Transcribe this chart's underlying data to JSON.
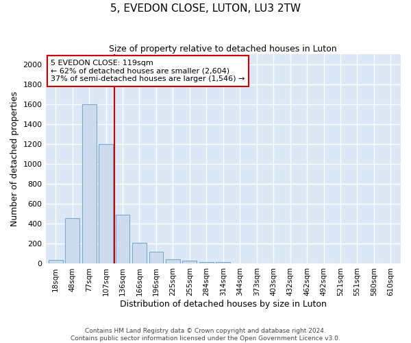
{
  "title": "5, EVEDON CLOSE, LUTON, LU3 2TW",
  "subtitle": "Size of property relative to detached houses in Luton",
  "xlabel": "Distribution of detached houses by size in Luton",
  "ylabel": "Number of detached properties",
  "bar_color": "#ccdcee",
  "bar_edge_color": "#7aaacb",
  "background_color": "#dce8f5",
  "grid_color": "#ffffff",
  "categories": [
    "18sqm",
    "48sqm",
    "77sqm",
    "107sqm",
    "136sqm",
    "166sqm",
    "196sqm",
    "225sqm",
    "255sqm",
    "284sqm",
    "314sqm",
    "344sqm",
    "373sqm",
    "403sqm",
    "432sqm",
    "462sqm",
    "492sqm",
    "521sqm",
    "551sqm",
    "580sqm",
    "610sqm"
  ],
  "values": [
    35,
    460,
    1600,
    1200,
    490,
    210,
    120,
    45,
    28,
    20,
    15,
    0,
    0,
    0,
    0,
    0,
    0,
    0,
    0,
    0,
    0
  ],
  "ylim": [
    0,
    2100
  ],
  "yticks": [
    0,
    200,
    400,
    600,
    800,
    1000,
    1200,
    1400,
    1600,
    1800,
    2000
  ],
  "annotation_text": "5 EVEDON CLOSE: 119sqm\n← 62% of detached houses are smaller (2,604)\n37% of semi-detached houses are larger (1,546) →",
  "annotation_box_color": "#ffffff",
  "annotation_box_edge_color": "#cc0000",
  "vline_x": 3.5,
  "vline_color": "#cc0000",
  "footer": "Contains HM Land Registry data © Crown copyright and database right 2024.\nContains public sector information licensed under the Open Government Licence v3.0.",
  "figsize": [
    6.0,
    5.0
  ],
  "dpi": 100
}
